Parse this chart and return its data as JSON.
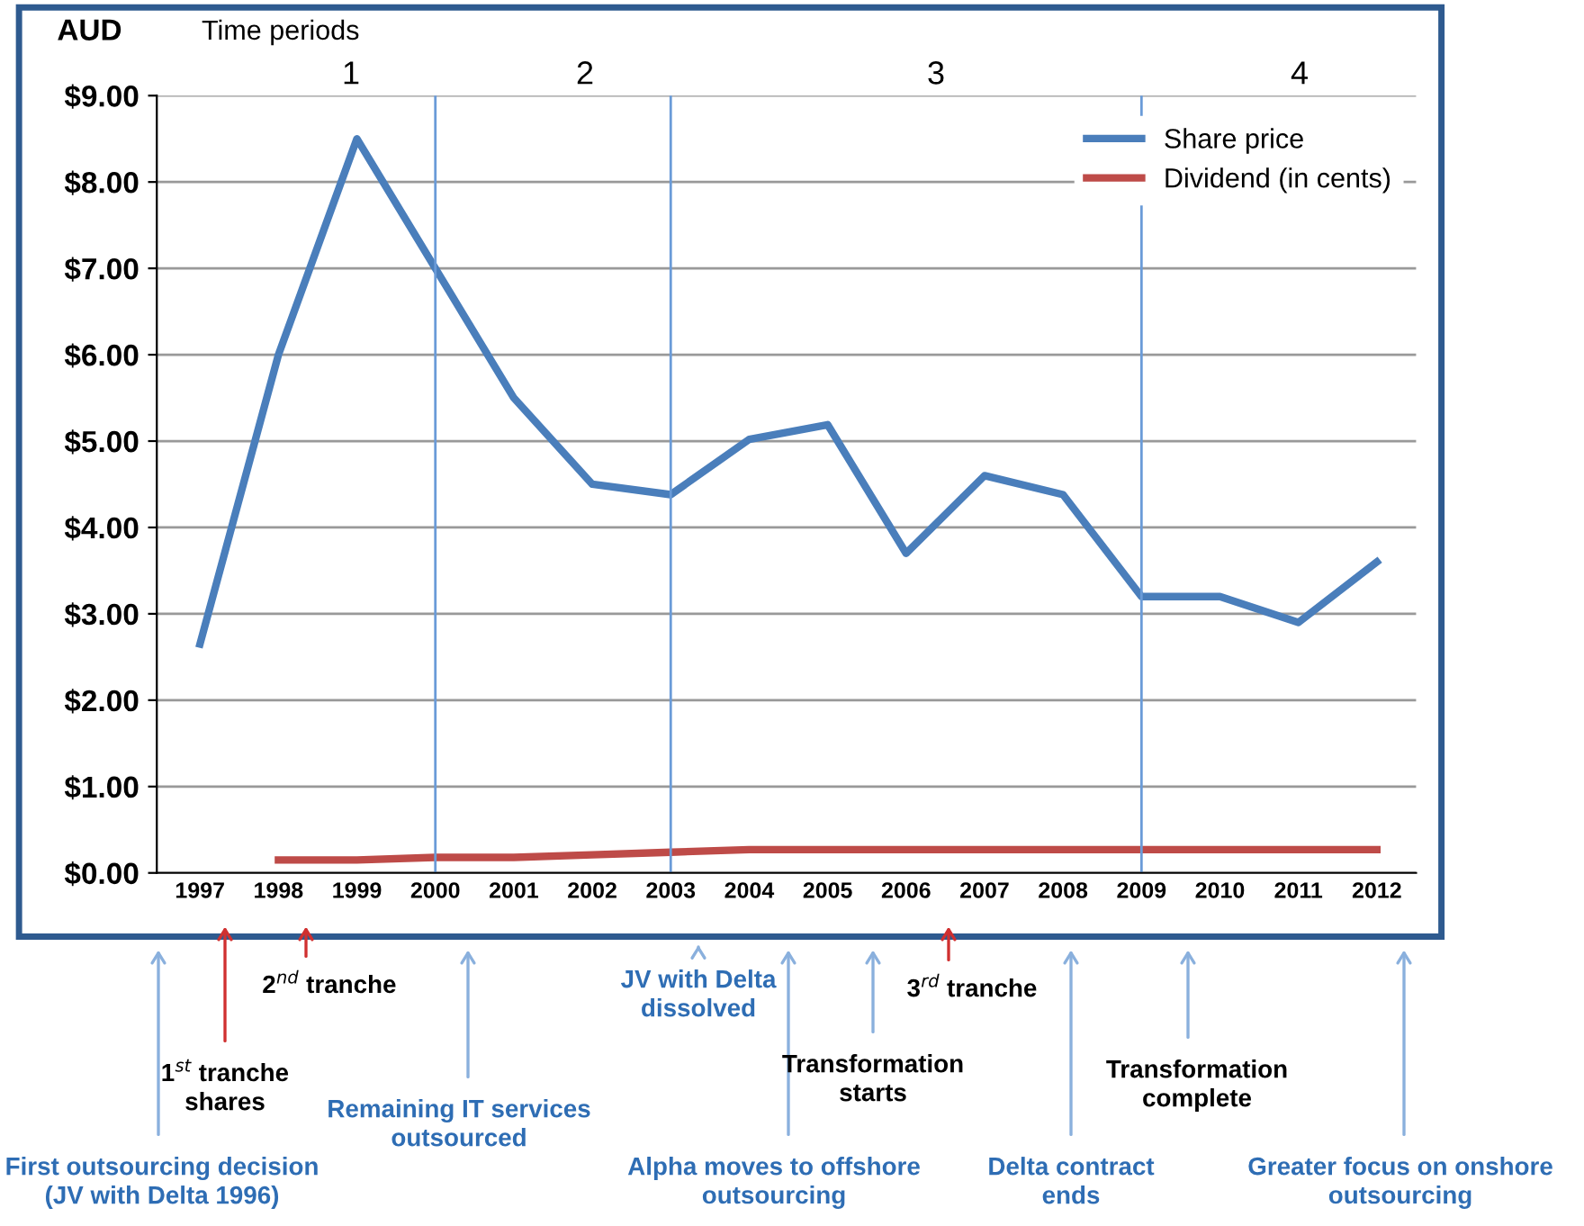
{
  "chart_data": {
    "type": "line",
    "ylabel": "AUD",
    "categories": [
      "1997",
      "1998",
      "1999",
      "2000",
      "2001",
      "2002",
      "2003",
      "2004",
      "2005",
      "2006",
      "2007",
      "2008",
      "2009",
      "2010",
      "2011",
      "2012"
    ],
    "series": [
      {
        "name": "Share price",
        "color": "#4a7ebb",
        "values": [
          2.65,
          6.0,
          8.5,
          7.0,
          5.5,
          4.5,
          4.38,
          5.02,
          5.19,
          3.7,
          4.6,
          4.38,
          3.2,
          3.2,
          2.9,
          3.6
        ]
      },
      {
        "name": "Dividend (in cents)",
        "color": "#be4b48",
        "values": [
          null,
          0.15,
          0.15,
          0.18,
          0.18,
          0.21,
          0.24,
          0.27,
          0.27,
          0.27,
          0.27,
          0.27,
          0.27,
          0.27,
          0.27,
          0.27
        ]
      }
    ],
    "ylim": [
      0,
      9
    ],
    "yticks": [
      {
        "value": 0,
        "label": "$0.00"
      },
      {
        "value": 1,
        "label": "$1.00"
      },
      {
        "value": 2,
        "label": "$2.00"
      },
      {
        "value": 3,
        "label": "$3.00"
      },
      {
        "value": 4,
        "label": "$4.00"
      },
      {
        "value": 5,
        "label": "$5.00"
      },
      {
        "value": 6,
        "label": "$6.00"
      },
      {
        "value": 7,
        "label": "$7.00"
      },
      {
        "value": 8,
        "label": "$8.00"
      },
      {
        "value": 9,
        "label": "$9.00"
      }
    ],
    "ref_lines": [
      {
        "axis": "x",
        "value": "2000",
        "color": "#6a9bd8"
      },
      {
        "axis": "x",
        "value": "2003",
        "color": "#6a9bd8"
      },
      {
        "axis": "x",
        "value": "2009",
        "color": "#6a9bd8"
      }
    ],
    "annotations": [
      "Time periods",
      "1",
      "2",
      "3",
      "4",
      "1$^{st}$ tranche\nshares",
      "2$^{nd}$ tranche",
      "Remaining IT services\noutsourced",
      "JV with Delta\ndissolved",
      "Transformation\nstarts",
      "3$^{rd}$ tranche",
      "Transformation\ncomplete",
      "First outsourcing decision\n(JV with Delta 1996)",
      "Alpha moves to offshore\noutsourcing",
      "Delta contract\nends",
      "Greater focus on onshore\noutsourcing"
    ],
    "grid": "y",
    "legend": "top right",
    "marker": "none",
    "line_style": "solid"
  }
}
